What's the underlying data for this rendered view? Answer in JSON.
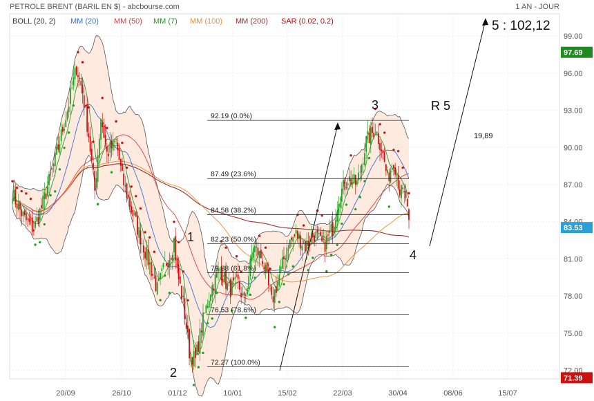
{
  "header": {
    "title": "PETROLE BRENT (BARIL EN $) - abcbourse.com",
    "period": "1 AN - JOUR",
    "indicators": [
      {
        "label": "BOLL (20, 2)",
        "color": "#333333"
      },
      {
        "label": "MM (20)",
        "color": "#3a6fd8"
      },
      {
        "label": "MM (50)",
        "color": "#e03a3a"
      },
      {
        "label": "MM (7)",
        "color": "#2a9a2a"
      },
      {
        "label": "MM (100)",
        "color": "#f08a30"
      },
      {
        "label": "MM (200)",
        "color": "#9b2d2d"
      },
      {
        "label": "SAR (0.02, 0.2)",
        "color": "#cc0000"
      }
    ]
  },
  "price_labels": {
    "high": {
      "value": "97.69",
      "price": 97.69,
      "color": "#1f8a1f"
    },
    "current": {
      "value": "83.53",
      "price": 83.53,
      "color": "#2aa0d8"
    },
    "low": {
      "value": "71.39",
      "price": 71.39,
      "color": "#cc1111"
    }
  },
  "annotations": {
    "target": "5 : 102,12",
    "resistance": "R 5",
    "distance": "19,89",
    "waves": [
      "1",
      "2",
      "3",
      "4"
    ]
  },
  "chart_data": {
    "type": "candlestick",
    "y_axis": {
      "ticks": [
        "72.00",
        "75.00",
        "78.00",
        "81.00",
        "84.00",
        "87.00",
        "90.00",
        "93.00",
        "96.00",
        "99.00"
      ],
      "range": [
        71.3,
        100.8
      ]
    },
    "x_axis": {
      "ticks": [
        "20/09",
        "26/10",
        "01/12",
        "10/01",
        "15/02",
        "22/03",
        "30/04",
        "08/06",
        "15/07"
      ]
    },
    "fibonacci": [
      {
        "price": 92.19,
        "label": "92.19  (0.0%)"
      },
      {
        "price": 87.49,
        "label": "87.49  (23.6%)"
      },
      {
        "price": 84.58,
        "label": "84.58  (38.2%)"
      },
      {
        "price": 82.23,
        "label": "82.23  (50.0%)"
      },
      {
        "price": 79.88,
        "label": "79.88  (61.8%)"
      },
      {
        "price": 76.53,
        "label": "76.53  (78.6%)"
      },
      {
        "price": 72.27,
        "label": "72.27  (100.0%)"
      }
    ],
    "price_anchors": [
      [
        0,
        86.2
      ],
      [
        8,
        84.2
      ],
      [
        14,
        83.4
      ],
      [
        20,
        85.5
      ],
      [
        28,
        89.0
      ],
      [
        36,
        93.0
      ],
      [
        42,
        96.5
      ],
      [
        46,
        94.5
      ],
      [
        50,
        91.0
      ],
      [
        54,
        86.5
      ],
      [
        58,
        92.5
      ],
      [
        62,
        89.5
      ],
      [
        68,
        90.5
      ],
      [
        72,
        87.5
      ],
      [
        78,
        85.0
      ],
      [
        82,
        83.5
      ],
      [
        86,
        82.0
      ],
      [
        90,
        80.5
      ],
      [
        95,
        78.5
      ],
      [
        100,
        80.5
      ],
      [
        104,
        81.5
      ],
      [
        106,
        82.5
      ],
      [
        108,
        80.0
      ],
      [
        112,
        77.5
      ],
      [
        116,
        73.5
      ],
      [
        120,
        72.8
      ],
      [
        124,
        75.5
      ],
      [
        130,
        78.5
      ],
      [
        136,
        80.2
      ],
      [
        142,
        78.5
      ],
      [
        148,
        79.0
      ],
      [
        152,
        77.5
      ],
      [
        158,
        82.0
      ],
      [
        164,
        81.0
      ],
      [
        170,
        77.5
      ],
      [
        176,
        80.0
      ],
      [
        180,
        82.0
      ],
      [
        186,
        83.0
      ],
      [
        192,
        82.0
      ],
      [
        198,
        83.0
      ],
      [
        204,
        82.0
      ],
      [
        210,
        83.5
      ],
      [
        214,
        86.0
      ],
      [
        220,
        87.5
      ],
      [
        226,
        87.0
      ],
      [
        232,
        90.5
      ],
      [
        238,
        91.5
      ],
      [
        242,
        90.0
      ],
      [
        246,
        87.5
      ],
      [
        250,
        89.0
      ],
      [
        252,
        88.0
      ],
      [
        254,
        86.5
      ],
      [
        258,
        86.0
      ],
      [
        260,
        83.5
      ]
    ],
    "sar_dots_count": 84
  }
}
